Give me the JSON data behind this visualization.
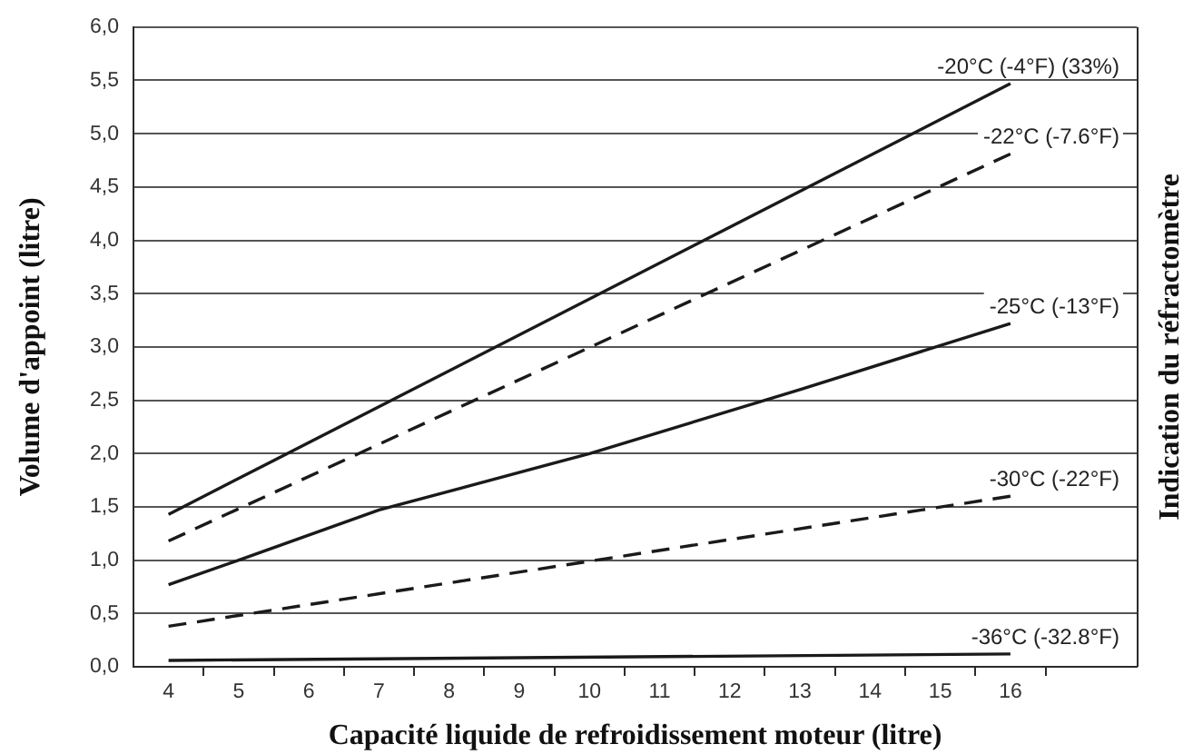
{
  "chart_data": {
    "type": "line",
    "xlabel": "Capacité liquide de refroidissement moteur (litre)",
    "ylabel": "Volume d'appoint (litre)",
    "y2label": "Indication du réfractomètre",
    "xlim": [
      3.5,
      17.8
    ],
    "xticks": [
      4,
      {
        "value": 4.5,
        "label": null
      },
      5,
      {
        "value": 5.5,
        "label": null
      },
      6,
      {
        "value": 6.5,
        "label": null
      },
      7,
      {
        "value": 7.5,
        "label": null
      },
      8,
      {
        "value": 8.5,
        "label": null
      },
      9,
      {
        "value": 9.5,
        "label": null
      },
      10,
      {
        "value": 10.5,
        "label": null
      },
      11,
      {
        "value": 11.5,
        "label": null
      },
      12,
      {
        "value": 12.5,
        "label": null
      },
      13,
      {
        "value": 13.5,
        "label": null
      },
      14,
      {
        "value": 14.5,
        "label": null
      },
      15,
      {
        "value": 15.5,
        "label": null
      },
      16,
      {
        "value": 16.5,
        "label": null
      }
    ],
    "ylim": [
      0,
      6
    ],
    "yticks": [
      {
        "value": 0,
        "label": "0,0"
      },
      {
        "value": 0.5,
        "label": "0,5"
      },
      {
        "value": 1,
        "label": "1,0"
      },
      {
        "value": 1.5,
        "label": "1,5"
      },
      {
        "value": 2,
        "label": "2,0"
      },
      {
        "value": 2.5,
        "label": "2,5"
      },
      {
        "value": 3,
        "label": "3,0"
      },
      {
        "value": 3.5,
        "label": "3,5"
      },
      {
        "value": 4,
        "label": "4,0"
      },
      {
        "value": 4.5,
        "label": "4,5"
      },
      {
        "value": 5,
        "label": "5,0"
      },
      {
        "value": 5.5,
        "label": "5,5"
      },
      {
        "value": 6,
        "label": "6,0"
      }
    ],
    "grid": "y",
    "legend": false,
    "marker": "none",
    "series": [
      {
        "name": "-20°C (-4°F) (33%)",
        "color": "#1a1a1a",
        "line_style": "solid",
        "x": [
          4,
          16
        ],
        "values": [
          1.43,
          5.47
        ]
      },
      {
        "name": "-22°C (-7.6°F)",
        "color": "#1a1a1a",
        "line_style": "dashed",
        "x": [
          4,
          16
        ],
        "values": [
          1.18,
          4.81
        ]
      },
      {
        "name": "-25°C (-13°F)",
        "color": "#1a1a1a",
        "line_style": "solid",
        "x": [
          4,
          5,
          7,
          10,
          13,
          16
        ],
        "values": [
          0.77,
          1.0,
          1.47,
          2.0,
          2.6,
          3.22
        ]
      },
      {
        "name": "-30°C (-22°F)",
        "color": "#1a1a1a",
        "line_style": "dashed",
        "x": [
          4,
          16
        ],
        "values": [
          0.38,
          1.6
        ]
      },
      {
        "name": "-36°C (-32.8°F)",
        "color": "#1a1a1a",
        "line_style": "solid",
        "x": [
          4,
          16
        ],
        "values": [
          0.06,
          0.12
        ]
      }
    ]
  }
}
